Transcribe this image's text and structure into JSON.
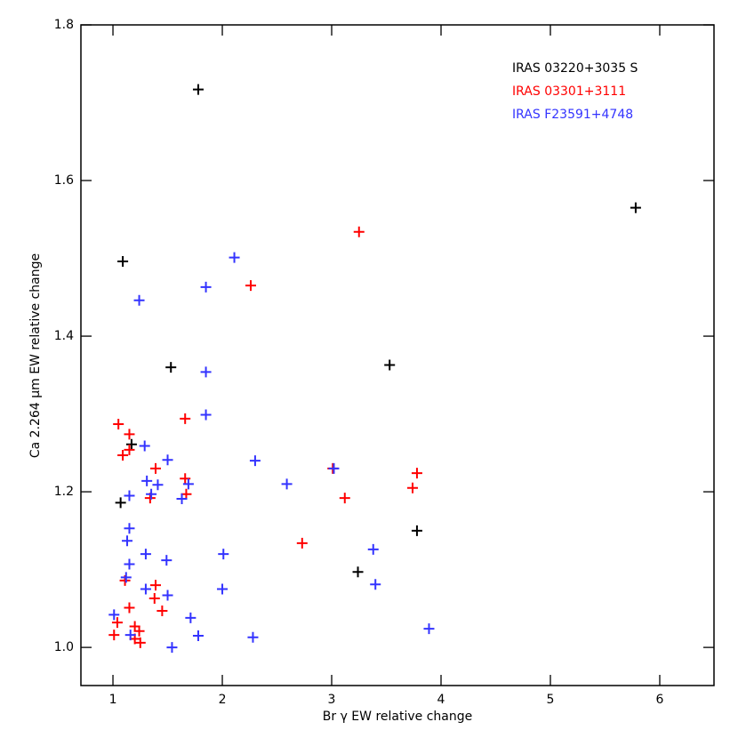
{
  "chart_data": {
    "type": "scatter",
    "x_label": "Br γ EW relative change",
    "y_label": "Ca 2.264 μm EW relative change",
    "xlim": [
      0.707,
      6.496
    ],
    "ylim": [
      0.951,
      1.8
    ],
    "xticks": [
      1,
      2,
      3,
      4,
      5,
      6
    ],
    "yticks": [
      {
        "value": 1.0,
        "label": "1.0"
      },
      {
        "value": 1.2,
        "label": "1.2"
      },
      {
        "value": 1.4,
        "label": "1.4"
      },
      {
        "value": 1.6,
        "label": "1.6"
      },
      {
        "value": 1.8,
        "label": "1.8"
      }
    ],
    "legend": "upper right",
    "series": [
      {
        "name": "IRAS 03220+3035 S",
        "color": "#000000",
        "x": [
          1.78,
          1.09,
          1.53,
          1.17,
          1.07,
          3.53,
          5.78,
          3.78,
          3.24
        ],
        "values": [
          1.717,
          1.496,
          1.36,
          1.261,
          1.186,
          1.363,
          1.565,
          1.15,
          1.097
        ]
      },
      {
        "name": "IRAS 03301+3111",
        "color": "#ff0000",
        "x": [
          3.25,
          2.26,
          1.05,
          1.66,
          1.15,
          1.15,
          1.09,
          1.39,
          3.01,
          1.66,
          1.67,
          1.34,
          3.12,
          3.78,
          3.74,
          2.73,
          1.11,
          1.39,
          1.38,
          1.45,
          1.15,
          1.04,
          1.01,
          1.2,
          1.24,
          1.2,
          1.25
        ],
        "values": [
          1.534,
          1.465,
          1.287,
          1.294,
          1.274,
          1.254,
          1.247,
          1.23,
          1.23,
          1.217,
          1.197,
          1.192,
          1.192,
          1.224,
          1.205,
          1.134,
          1.086,
          1.08,
          1.063,
          1.047,
          1.051,
          1.032,
          1.016,
          1.027,
          1.021,
          1.011,
          1.006
        ]
      },
      {
        "name": "IRAS F23591+4748",
        "color": "#3333ff",
        "x": [
          2.11,
          1.85,
          1.24,
          1.85,
          1.85,
          1.29,
          2.3,
          1.5,
          1.31,
          1.41,
          1.69,
          1.35,
          1.15,
          1.63,
          2.59,
          3.02,
          1.15,
          1.13,
          1.3,
          2.01,
          3.38,
          1.15,
          1.49,
          1.12,
          1.3,
          2.0,
          3.4,
          1.5,
          1.01,
          1.71,
          3.89,
          1.16,
          1.78,
          2.28,
          1.54
        ],
        "values": [
          1.501,
          1.463,
          1.446,
          1.354,
          1.299,
          1.259,
          1.24,
          1.241,
          1.214,
          1.209,
          1.21,
          1.197,
          1.195,
          1.191,
          1.21,
          1.23,
          1.153,
          1.137,
          1.12,
          1.12,
          1.126,
          1.107,
          1.112,
          1.09,
          1.075,
          1.075,
          1.081,
          1.067,
          1.042,
          1.038,
          1.024,
          1.016,
          1.015,
          1.013,
          1.0
        ]
      }
    ]
  }
}
